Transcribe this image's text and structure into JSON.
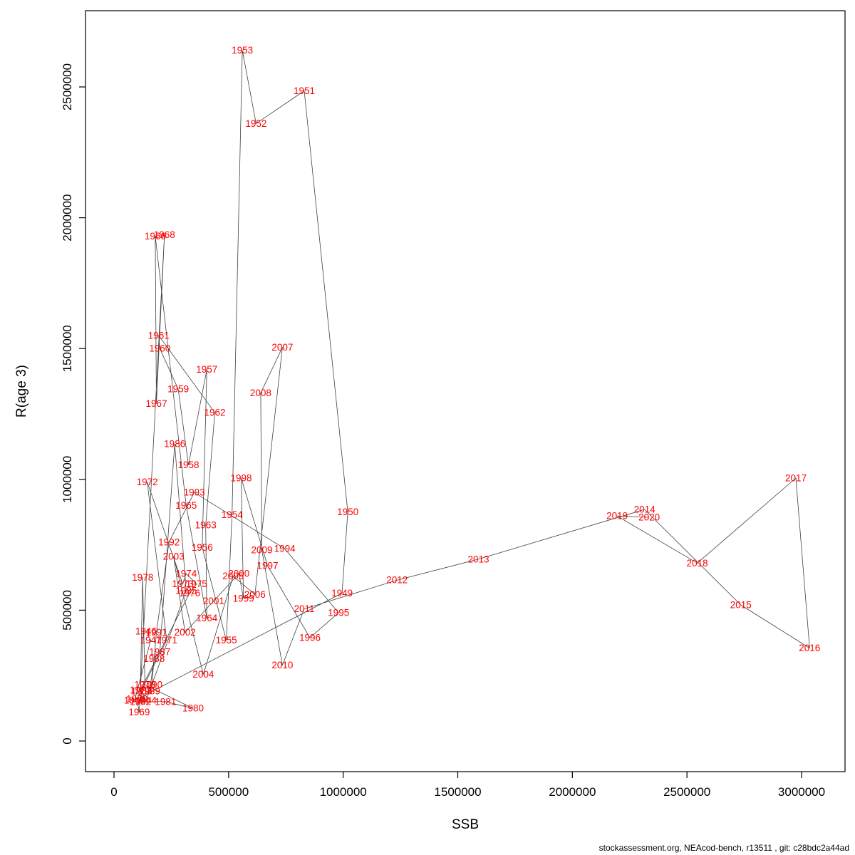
{
  "footer": {
    "text": "stockassessment.org, NEAcod-bench, r13511 , git: c28bdc2a44ad"
  },
  "chart_data": {
    "type": "scatter",
    "title": "",
    "xlabel": "SSB",
    "ylabel": "R(age 3)",
    "xlim": [
      0,
      3100000
    ],
    "ylim": [
      0,
      2700000
    ],
    "x_ticks": [
      0,
      500000,
      1000000,
      1500000,
      2000000,
      2500000,
      3000000
    ],
    "y_ticks": [
      0,
      500000,
      1000000,
      1500000,
      2000000,
      2500000
    ],
    "grid": false,
    "legend_position": "none",
    "label_color": "#ff0000",
    "line_color": "#404040",
    "points": [
      {
        "year": 1946,
        "ssb": 140000,
        "r": 420000
      },
      {
        "year": 1947,
        "ssb": 160000,
        "r": 385000
      },
      {
        "year": 1948,
        "ssb": 90000,
        "r": 155000
      },
      {
        "year": 1949,
        "ssb": 995000,
        "r": 565000
      },
      {
        "year": 1950,
        "ssb": 1020000,
        "r": 875000
      },
      {
        "year": 1951,
        "ssb": 830000,
        "r": 2485000
      },
      {
        "year": 1952,
        "ssb": 620000,
        "r": 2360000
      },
      {
        "year": 1953,
        "ssb": 560000,
        "r": 2640000
      },
      {
        "year": 1954,
        "ssb": 515000,
        "r": 865000
      },
      {
        "year": 1955,
        "ssb": 490000,
        "r": 385000
      },
      {
        "year": 1956,
        "ssb": 385000,
        "r": 740000
      },
      {
        "year": 1957,
        "ssb": 405000,
        "r": 1420000
      },
      {
        "year": 1958,
        "ssb": 325000,
        "r": 1055000
      },
      {
        "year": 1959,
        "ssb": 280000,
        "r": 1345000
      },
      {
        "year": 1960,
        "ssb": 200000,
        "r": 1500000
      },
      {
        "year": 1961,
        "ssb": 195000,
        "r": 1550000
      },
      {
        "year": 1962,
        "ssb": 440000,
        "r": 1255000
      },
      {
        "year": 1963,
        "ssb": 400000,
        "r": 825000
      },
      {
        "year": 1964,
        "ssb": 405000,
        "r": 470000
      },
      {
        "year": 1965,
        "ssb": 315000,
        "r": 900000
      },
      {
        "year": 1966,
        "ssb": 180000,
        "r": 1930000
      },
      {
        "year": 1967,
        "ssb": 185000,
        "r": 1290000
      },
      {
        "year": 1968,
        "ssb": 220000,
        "r": 1935000
      },
      {
        "year": 1969,
        "ssb": 110000,
        "r": 110000
      },
      {
        "year": 1970,
        "ssb": 100000,
        "r": 160000
      },
      {
        "year": 1971,
        "ssb": 230000,
        "r": 385000
      },
      {
        "year": 1972,
        "ssb": 145000,
        "r": 990000
      },
      {
        "year": 1973,
        "ssb": 300000,
        "r": 600000
      },
      {
        "year": 1974,
        "ssb": 315000,
        "r": 640000
      },
      {
        "year": 1975,
        "ssb": 360000,
        "r": 600000
      },
      {
        "year": 1976,
        "ssb": 330000,
        "r": 565000
      },
      {
        "year": 1977,
        "ssb": 115000,
        "r": 195000
      },
      {
        "year": 1978,
        "ssb": 125000,
        "r": 625000
      },
      {
        "year": 1979,
        "ssb": 135000,
        "r": 215000
      },
      {
        "year": 1980,
        "ssb": 345000,
        "r": 125000
      },
      {
        "year": 1981,
        "ssb": 225000,
        "r": 150000
      },
      {
        "year": 1982,
        "ssb": 115000,
        "r": 150000
      },
      {
        "year": 1983,
        "ssb": 120000,
        "r": 190000
      },
      {
        "year": 1984,
        "ssb": 140000,
        "r": 155000
      },
      {
        "year": 1985,
        "ssb": 315000,
        "r": 575000
      },
      {
        "year": 1986,
        "ssb": 265000,
        "r": 1135000
      },
      {
        "year": 1987,
        "ssb": 200000,
        "r": 340000
      },
      {
        "year": 1988,
        "ssb": 175000,
        "r": 315000
      },
      {
        "year": 1989,
        "ssb": 155000,
        "r": 190000
      },
      {
        "year": 1990,
        "ssb": 165000,
        "r": 215000
      },
      {
        "year": 1991,
        "ssb": 185000,
        "r": 415000
      },
      {
        "year": 1992,
        "ssb": 240000,
        "r": 760000
      },
      {
        "year": 1993,
        "ssb": 350000,
        "r": 950000
      },
      {
        "year": 1994,
        "ssb": 745000,
        "r": 735000
      },
      {
        "year": 1995,
        "ssb": 980000,
        "r": 490000
      },
      {
        "year": 1996,
        "ssb": 855000,
        "r": 395000
      },
      {
        "year": 1997,
        "ssb": 670000,
        "r": 670000
      },
      {
        "year": 1998,
        "ssb": 555000,
        "r": 1005000
      },
      {
        "year": 1999,
        "ssb": 565000,
        "r": 545000
      },
      {
        "year": 2000,
        "ssb": 545000,
        "r": 640000
      },
      {
        "year": 2001,
        "ssb": 435000,
        "r": 535000
      },
      {
        "year": 2002,
        "ssb": 310000,
        "r": 415000
      },
      {
        "year": 2003,
        "ssb": 260000,
        "r": 705000
      },
      {
        "year": 2004,
        "ssb": 390000,
        "r": 255000
      },
      {
        "year": 2005,
        "ssb": 520000,
        "r": 630000
      },
      {
        "year": 2006,
        "ssb": 615000,
        "r": 560000
      },
      {
        "year": 2007,
        "ssb": 735000,
        "r": 1505000
      },
      {
        "year": 2008,
        "ssb": 640000,
        "r": 1330000
      },
      {
        "year": 2009,
        "ssb": 645000,
        "r": 730000
      },
      {
        "year": 2010,
        "ssb": 735000,
        "r": 290000
      },
      {
        "year": 2011,
        "ssb": 830000,
        "r": 505000
      },
      {
        "year": 2012,
        "ssb": 1235000,
        "r": 615000
      },
      {
        "year": 2013,
        "ssb": 1590000,
        "r": 695000
      },
      {
        "year": 2014,
        "ssb": 2315000,
        "r": 885000
      },
      {
        "year": 2015,
        "ssb": 2735000,
        "r": 520000
      },
      {
        "year": 2016,
        "ssb": 3035000,
        "r": 355000
      },
      {
        "year": 2017,
        "ssb": 2975000,
        "r": 1005000
      },
      {
        "year": 2018,
        "ssb": 2545000,
        "r": 680000
      },
      {
        "year": 2019,
        "ssb": 2195000,
        "r": 860000
      },
      {
        "year": 2020,
        "ssb": 2335000,
        "r": 855000
      }
    ]
  }
}
